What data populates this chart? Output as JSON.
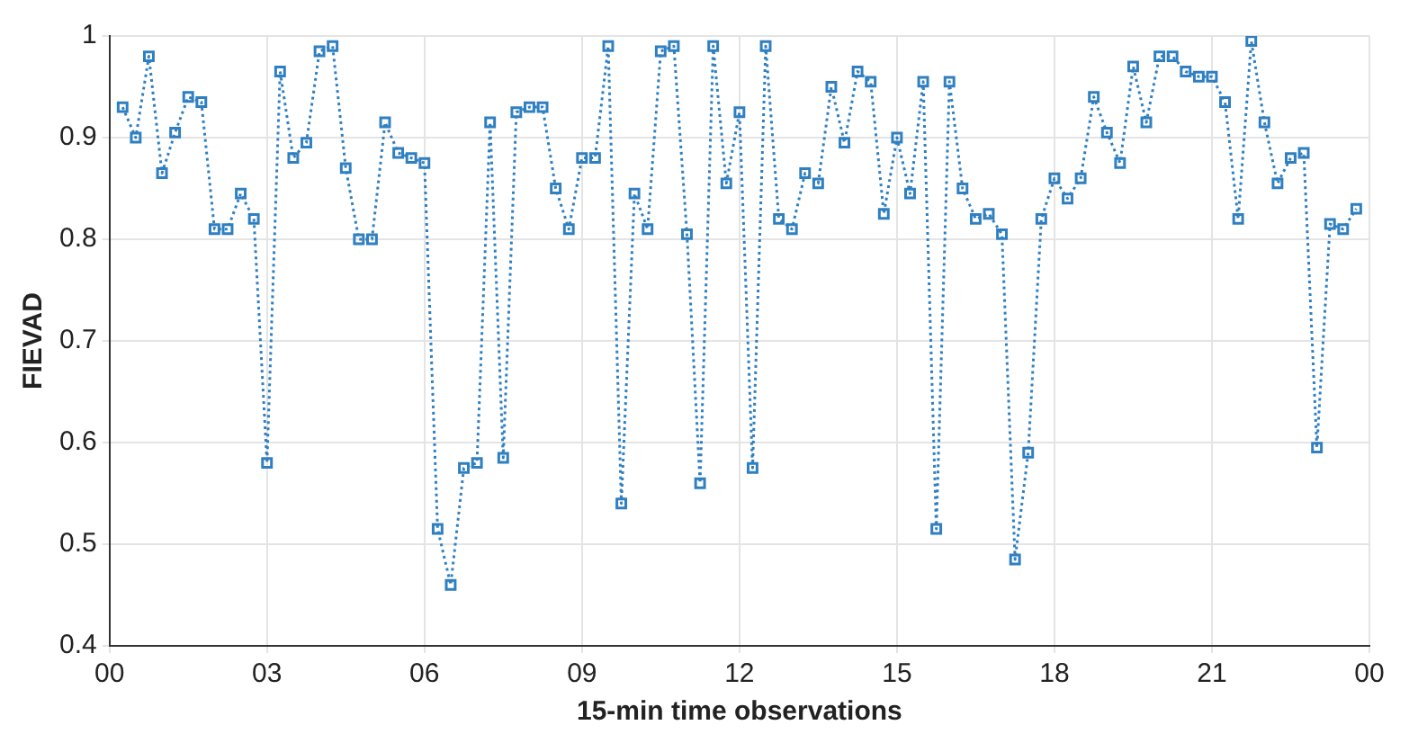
{
  "chart_data": {
    "type": "line",
    "xlabel": "15-min time observations",
    "ylabel": "FIEVAD",
    "xlim": [
      0,
      24
    ],
    "xticks": [
      {
        "value": 0,
        "label": "00"
      },
      {
        "value": 3,
        "label": "03"
      },
      {
        "value": 6,
        "label": "06"
      },
      {
        "value": 9,
        "label": "09"
      },
      {
        "value": 12,
        "label": "12"
      },
      {
        "value": 15,
        "label": "15"
      },
      {
        "value": 18,
        "label": "18"
      },
      {
        "value": 21,
        "label": "21"
      },
      {
        "value": 24,
        "label": "00"
      }
    ],
    "ylim": [
      0.4,
      1
    ],
    "yticks": [
      0.4,
      0.5,
      0.6,
      0.7,
      0.8,
      0.9,
      1
    ],
    "grid": true,
    "marker": "square",
    "line_style": "dotted",
    "legend": false,
    "series": [
      {
        "color": "#2f7fc1",
        "x": [
          0.25,
          0.5,
          0.75,
          1,
          1.25,
          1.5,
          1.75,
          2,
          2.25,
          2.5,
          2.75,
          3,
          3.25,
          3.5,
          3.75,
          4,
          4.25,
          4.5,
          4.75,
          5,
          5.25,
          5.5,
          5.75,
          6,
          6.25,
          6.5,
          6.75,
          7,
          7.25,
          7.5,
          7.75,
          8,
          8.25,
          8.5,
          8.75,
          9,
          9.25,
          9.5,
          9.75,
          10,
          10.25,
          10.5,
          10.75,
          11,
          11.25,
          11.5,
          11.75,
          12,
          12.25,
          12.5,
          12.75,
          13,
          13.25,
          13.5,
          13.75,
          14,
          14.25,
          14.5,
          14.75,
          15,
          15.25,
          15.5,
          15.75,
          16,
          16.25,
          16.5,
          16.75,
          17,
          17.25,
          17.5,
          17.75,
          18,
          18.25,
          18.5,
          18.75,
          19,
          19.25,
          19.5,
          19.75,
          20,
          20.25,
          20.5,
          20.75,
          21,
          21.25,
          21.5,
          21.75,
          22,
          22.25,
          22.5,
          22.75,
          23,
          23.25,
          23.5,
          23.75
        ],
        "values": [
          0.93,
          0.9,
          0.98,
          0.865,
          0.905,
          0.94,
          0.935,
          0.81,
          0.81,
          0.845,
          0.82,
          0.58,
          0.965,
          0.88,
          0.895,
          0.985,
          0.99,
          0.87,
          0.8,
          0.8,
          0.915,
          0.885,
          0.88,
          0.875,
          0.515,
          0.46,
          0.575,
          0.58,
          0.915,
          0.585,
          0.925,
          0.93,
          0.93,
          0.85,
          0.81,
          0.88,
          0.88,
          0.99,
          0.54,
          0.845,
          0.81,
          0.985,
          0.99,
          0.805,
          0.56,
          0.99,
          0.855,
          0.925,
          0.575,
          0.99,
          0.82,
          0.81,
          0.865,
          0.855,
          0.95,
          0.895,
          0.965,
          0.955,
          0.825,
          0.9,
          0.845,
          0.955,
          0.515,
          0.955,
          0.85,
          0.82,
          0.825,
          0.805,
          0.485,
          0.59,
          0.82,
          0.86,
          0.84,
          0.86,
          0.94,
          0.905,
          0.875,
          0.97,
          0.915,
          0.98,
          0.98,
          0.965,
          0.96,
          0.96,
          0.935,
          0.82,
          0.995,
          0.915,
          0.855,
          0.88,
          0.885,
          0.595,
          0.815,
          0.81,
          0.83
        ]
      }
    ]
  }
}
